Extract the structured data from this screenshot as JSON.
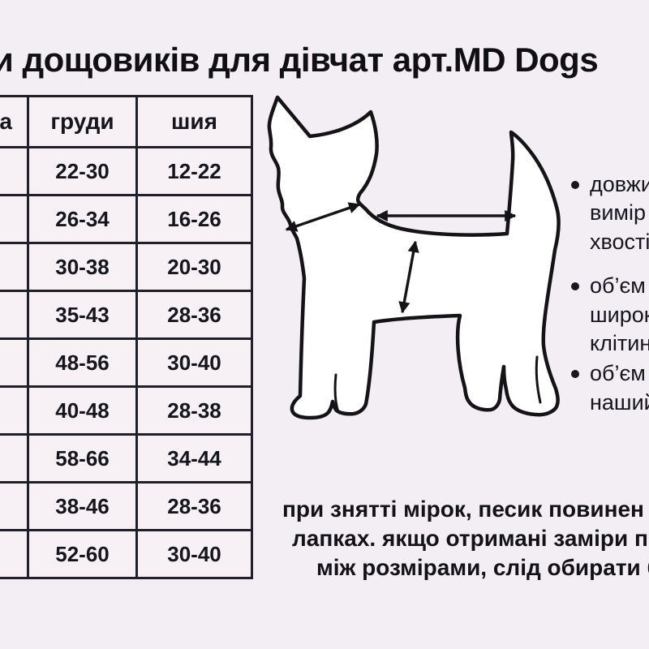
{
  "page": {
    "background_color": "#f3edf4",
    "ink_color": "#17171f"
  },
  "title": {
    "text": "и дощовиків для дівчат арт.MD Dogs"
  },
  "size_table": {
    "headers": [
      "а",
      "груди",
      "шия"
    ],
    "rows": [
      [
        "",
        "22-30",
        "12-22"
      ],
      [
        "",
        "26-34",
        "16-26"
      ],
      [
        "",
        "30-38",
        "20-30"
      ],
      [
        "",
        "35-43",
        "28-36"
      ],
      [
        "",
        "48-56",
        "30-40"
      ],
      [
        "",
        "40-48",
        "28-38"
      ],
      [
        "",
        "58-66",
        "34-44"
      ],
      [
        "",
        "38-46",
        "28-36"
      ],
      [
        "",
        "52-60",
        "30-40"
      ]
    ]
  },
  "illustration": {
    "label": "dog-outline-with-measurement-arrows",
    "arrows": [
      "neck-girth-arrow",
      "back-length-arrow",
      "chest-girth-arrow"
    ]
  },
  "measurement_notes": {
    "items": [
      {
        "lines": [
          "довжи",
          "вимір",
          "хвості"
        ]
      },
      {
        "lines": [
          "об’єм",
          "широк",
          "клітин"
        ]
      },
      {
        "lines": [
          "об’єм",
          "наший"
        ]
      }
    ]
  },
  "footer_note": {
    "lines": [
      "при знятті мірок, песик повинен с",
      "лапках. якщо отримані заміри пе",
      "між розмірами, слід обирати б"
    ]
  }
}
